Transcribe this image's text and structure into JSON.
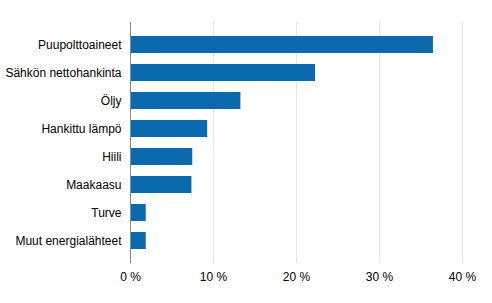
{
  "chart_data": {
    "type": "bar",
    "orientation": "horizontal",
    "categories": [
      "Puupolttoaineet",
      "Sähkön nettohankinta",
      "Öljy",
      "Hankittu lämpö",
      "Hiili",
      "Maakaasu",
      "Turve",
      "Muut energialähteet"
    ],
    "values": [
      36.5,
      22.3,
      13.3,
      9.3,
      7.5,
      7.4,
      1.9,
      1.9
    ],
    "color": "#0a6aad",
    "xlim": [
      0,
      40
    ],
    "xticks": [
      {
        "value": 0,
        "label": "0 %"
      },
      {
        "value": 10,
        "label": "10 %"
      },
      {
        "value": 20,
        "label": "20 %"
      },
      {
        "value": 30,
        "label": "30 %"
      },
      {
        "value": 40,
        "label": "40 %"
      }
    ],
    "grid": true
  }
}
